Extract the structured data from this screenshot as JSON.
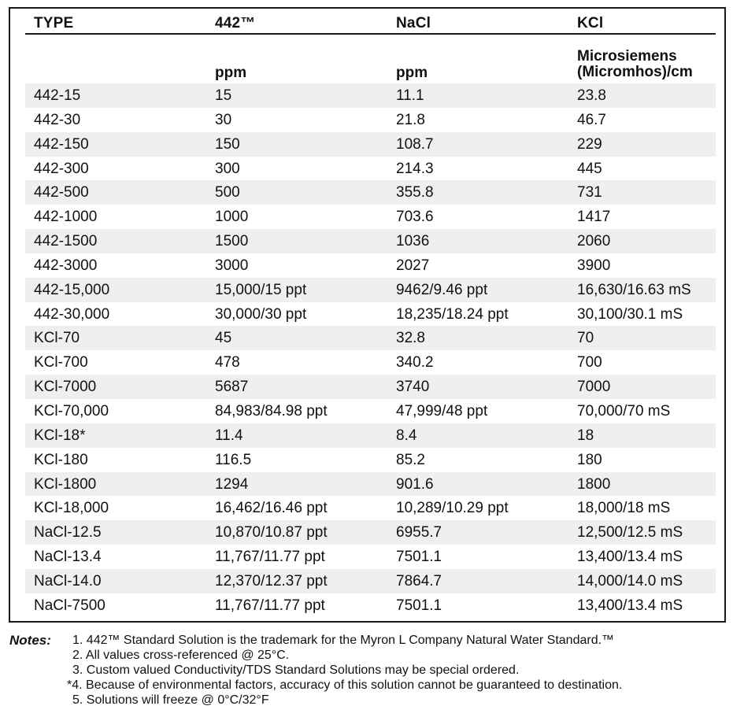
{
  "table": {
    "headers": [
      "TYPE",
      "442™",
      "NaCl",
      "KCl"
    ],
    "subheaders": [
      "",
      "ppm",
      "ppm",
      "Microsiemens",
      "(Micromhos)/cm"
    ],
    "rows": [
      [
        "442-15",
        "15",
        "11.1",
        "23.8"
      ],
      [
        "442-30",
        "30",
        "21.8",
        "46.7"
      ],
      [
        "442-150",
        "150",
        "108.7",
        "229"
      ],
      [
        "442-300",
        "300",
        "214.3",
        "445"
      ],
      [
        "442-500",
        "500",
        "355.8",
        "731"
      ],
      [
        "442-1000",
        "1000",
        "703.6",
        "1417"
      ],
      [
        "442-1500",
        "1500",
        "1036",
        "2060"
      ],
      [
        "442-3000",
        "3000",
        "2027",
        "3900"
      ],
      [
        "442-15,000",
        "15,000/15 ppt",
        "9462/9.46 ppt",
        "16,630/16.63 mS"
      ],
      [
        "442-30,000",
        "30,000/30 ppt",
        "18,235/18.24 ppt",
        "30,100/30.1 mS"
      ],
      [
        "KCl-70",
        "45",
        "32.8",
        "70"
      ],
      [
        "KCl-700",
        "478",
        "340.2",
        "700"
      ],
      [
        "KCl-7000",
        "5687",
        "3740",
        "7000"
      ],
      [
        "KCl-70,000",
        "84,983/84.98 ppt",
        "47,999/48 ppt",
        "70,000/70 mS"
      ],
      [
        "KCl-18*",
        "11.4",
        "8.4",
        "18"
      ],
      [
        "KCl-180",
        "116.5",
        "85.2",
        "180"
      ],
      [
        "KCl-1800",
        "1294",
        "901.6",
        "1800"
      ],
      [
        "KCl-18,000",
        "16,462/16.46 ppt",
        "10,289/10.29 ppt",
        "18,000/18 mS"
      ],
      [
        "NaCl-12.5",
        "10,870/10.87 ppt",
        "6955.7",
        "12,500/12.5 mS"
      ],
      [
        "NaCl-13.4",
        "11,767/11.77 ppt",
        "7501.1",
        "13,400/13.4 mS"
      ],
      [
        "NaCl-14.0",
        "12,370/12.37 ppt",
        "7864.7",
        "14,000/14.0 mS"
      ],
      [
        "NaCl-7500",
        "11,767/11.77 ppt",
        "7501.1",
        "13,400/13.4 mS"
      ]
    ]
  },
  "notes": {
    "label": "Notes:",
    "items": [
      "1. 442™ Standard Solution is the trademark for the Myron L Company Natural Water Standard.™",
      "2. All values cross-referenced @ 25°C.",
      "3. Custom valued Conductivity/TDS Standard Solutions may be special ordered.",
      "*4. Because of environmental factors, accuracy of this solution cannot be guaranteed to destination.",
      "5. Solutions will freeze @ 0°C/32°F"
    ]
  }
}
